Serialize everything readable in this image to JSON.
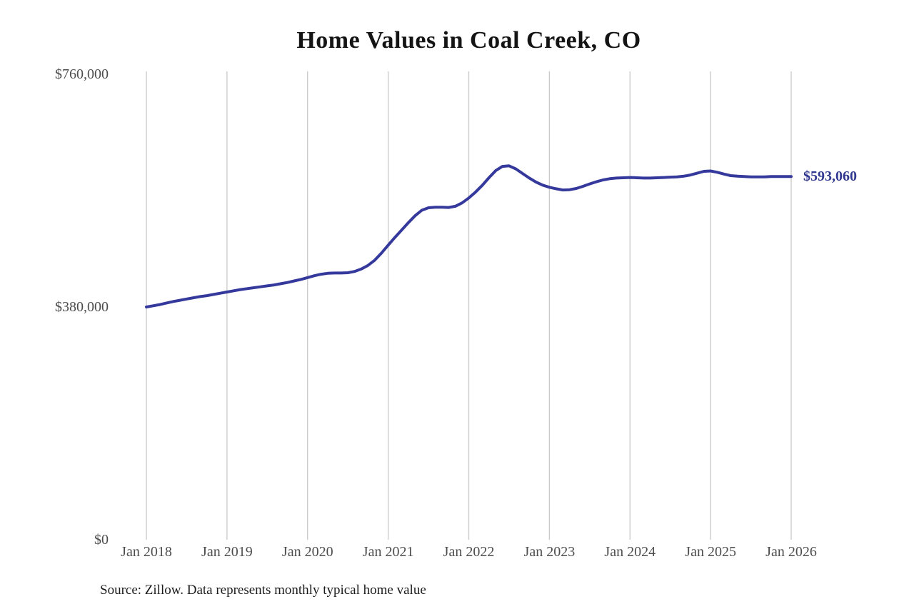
{
  "title": "Home Values in Coal Creek, CO",
  "source_note": "Source: Zillow. Data represents monthly typical home value",
  "colors": {
    "background": "#ffffff",
    "line": "#35399b",
    "end_label": "#30388f",
    "grid": "#c9c9c9",
    "axis_text": "#4d4d4d",
    "title_text": "#141414",
    "source_text": "#1c1c1c"
  },
  "chart_data": {
    "type": "line",
    "title": "Home Values in Coal Creek, CO",
    "xlabel": "",
    "ylabel": "",
    "ylim": [
      0,
      760000
    ],
    "grid": "vertical-only",
    "legend": "none",
    "y_ticks": [
      {
        "value": 0,
        "label": "$0"
      },
      {
        "value": 380000,
        "label": "$380,000"
      },
      {
        "value": 760000,
        "label": "$760,000"
      }
    ],
    "x_tick_labels": [
      "Jan 2018",
      "Jan 2019",
      "Jan 2020",
      "Jan 2021",
      "Jan 2022",
      "Jan 2023",
      "Jan 2024",
      "Jan 2025",
      "Jan 2026"
    ],
    "points_per_year": 12,
    "x_start": "Jan 2018",
    "x_end": "Jan 2026",
    "end_value": 593060,
    "end_value_label": "$593,060",
    "series": [
      {
        "name": "Monthly typical home value",
        "values": [
          380000,
          382000,
          384000,
          386500,
          389000,
          391000,
          393000,
          395000,
          397000,
          398500,
          400500,
          402500,
          404500,
          406500,
          408500,
          410000,
          411500,
          413000,
          414500,
          416000,
          418000,
          420000,
          422500,
          425000,
          428000,
          431000,
          433500,
          435000,
          435500,
          435500,
          436000,
          438000,
          442000,
          448000,
          456500,
          468000,
          481000,
          493500,
          505500,
          517500,
          529000,
          538000,
          542000,
          543000,
          543000,
          542500,
          544500,
          550000,
          558000,
          567500,
          578500,
          591000,
          602500,
          609500,
          610500,
          605500,
          598000,
          590500,
          584000,
          579000,
          575500,
          573000,
          571000,
          571500,
          573500,
          577000,
          581000,
          584500,
          587500,
          589500,
          590500,
          591000,
          591500,
          591000,
          590500,
          590500,
          591000,
          591500,
          592000,
          592500,
          593500,
          595500,
          598500,
          601500,
          602000,
          600000,
          597000,
          594500,
          593500,
          593000,
          592500,
          592500,
          592500,
          593000,
          593000,
          593000,
          593060
        ]
      }
    ]
  }
}
